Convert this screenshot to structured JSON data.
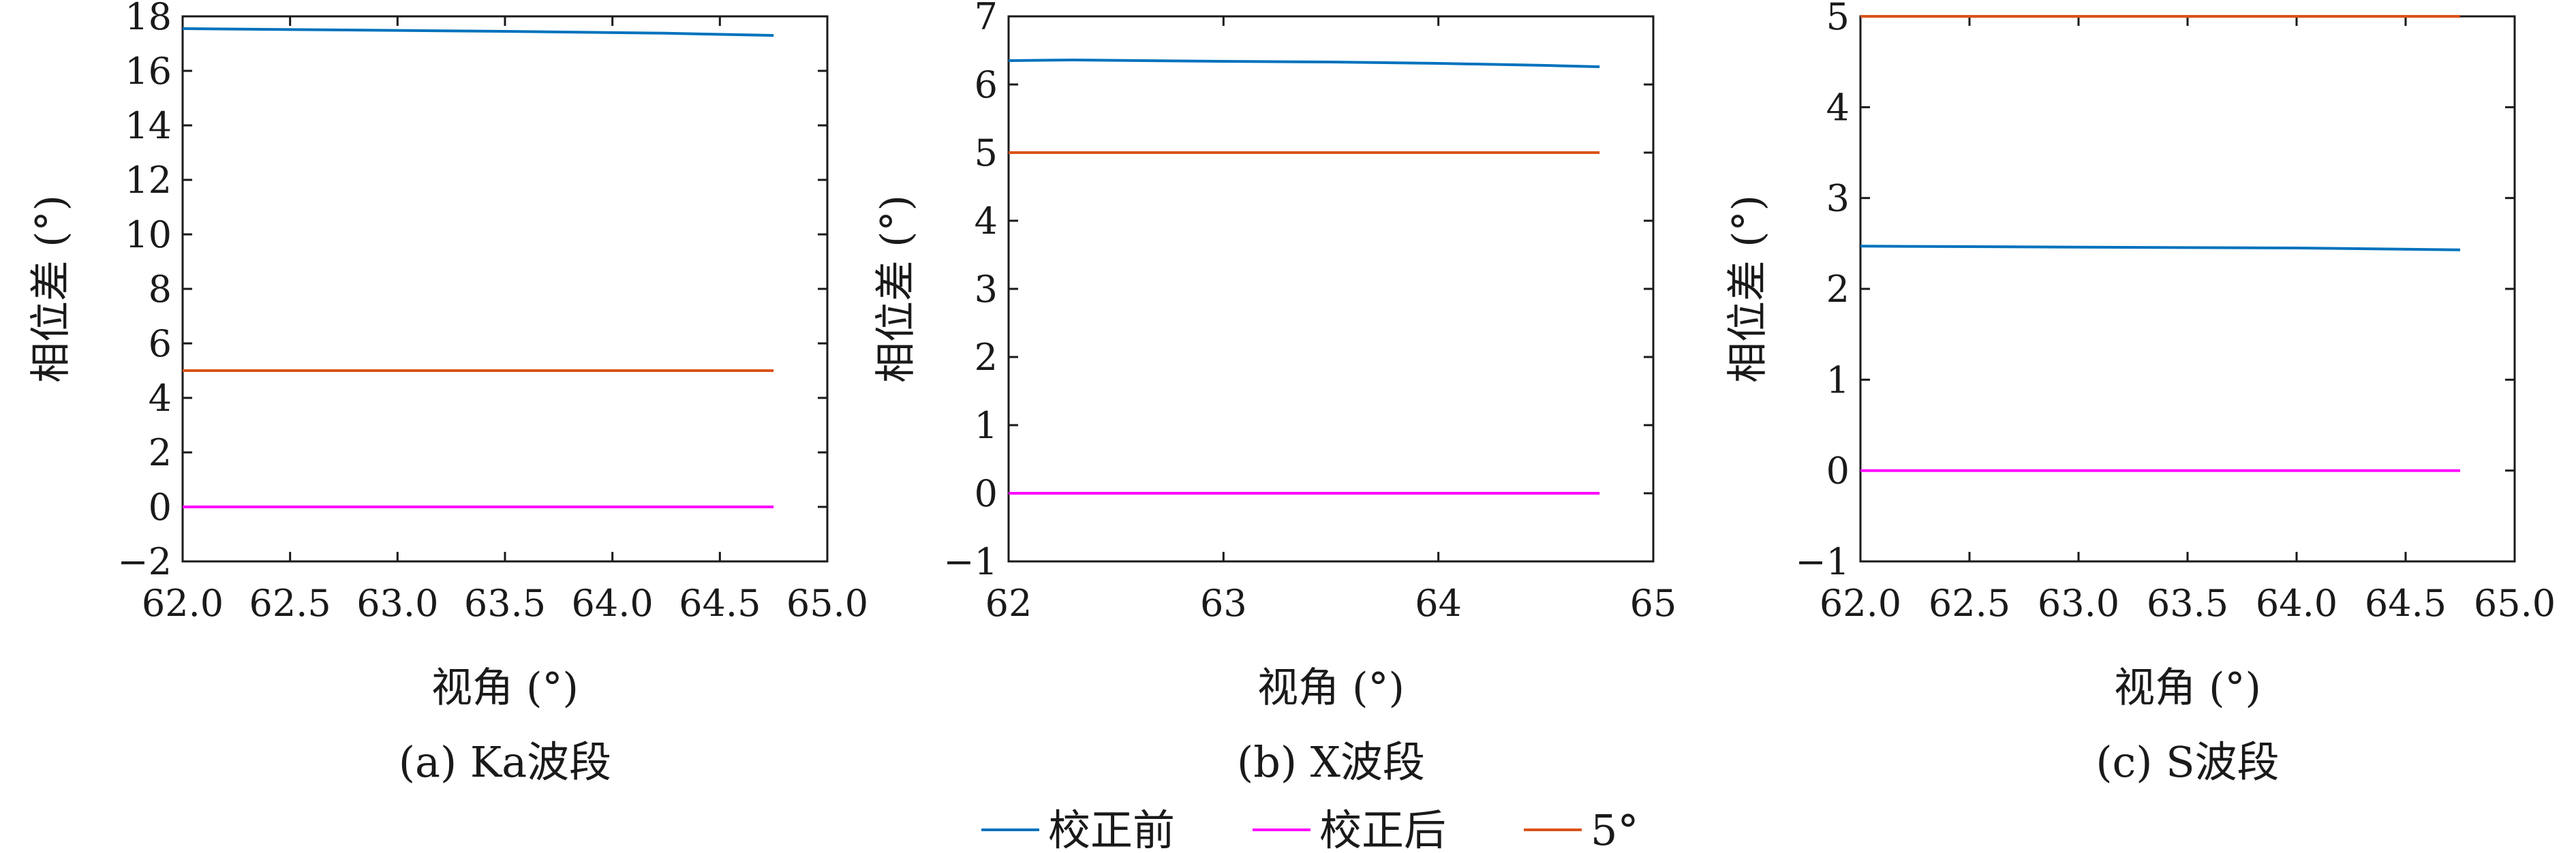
{
  "colors": {
    "before": "#0072BD",
    "after": "#FF00FF",
    "ref": "#D95319",
    "axis": "#1a1a1a"
  },
  "legend": {
    "placement": "bottom-center",
    "entries": [
      "校正前",
      "校正后",
      "5°"
    ]
  },
  "chart_data": [
    {
      "type": "line",
      "caption": "(a) Ka波段",
      "xlabel": "视角 (°)",
      "ylabel": "相位差 (°)",
      "xlim": [
        62.0,
        65.0
      ],
      "ylim": [
        -2,
        18
      ],
      "xticks": [
        62.0,
        62.5,
        63.0,
        63.5,
        64.0,
        64.5,
        65.0
      ],
      "xtick_labels": [
        "62.0",
        "62.5",
        "63.0",
        "63.5",
        "64.0",
        "64.5",
        "65.0"
      ],
      "yticks": [
        -2,
        0,
        2,
        4,
        6,
        8,
        10,
        12,
        14,
        16,
        18
      ],
      "ytick_labels": [
        "−2",
        "0",
        "2",
        "4",
        "6",
        "8",
        "10",
        "12",
        "14",
        "16",
        "18"
      ],
      "grid": false,
      "series": [
        {
          "name": "校正前",
          "x": [
            62.0,
            62.75,
            63.5,
            64.25,
            64.75
          ],
          "y": [
            17.55,
            17.5,
            17.45,
            17.38,
            17.3
          ]
        },
        {
          "name": "校正后",
          "x": [
            62.0,
            64.75
          ],
          "y": [
            0.0,
            0.0
          ]
        },
        {
          "name": "5°",
          "x": [
            62.0,
            64.75
          ],
          "y": [
            5.0,
            5.0
          ]
        }
      ]
    },
    {
      "type": "line",
      "caption": "(b) X波段",
      "xlabel": "视角 (°)",
      "ylabel": "相位差 (°)",
      "xlim": [
        62,
        65
      ],
      "ylim": [
        -1,
        7
      ],
      "xticks": [
        62,
        63,
        64,
        65
      ],
      "xtick_labels": [
        "62",
        "63",
        "64",
        "65"
      ],
      "yticks": [
        -1,
        0,
        1,
        2,
        3,
        4,
        5,
        6,
        7
      ],
      "ytick_labels": [
        "−1",
        "0",
        "1",
        "2",
        "3",
        "4",
        "5",
        "6",
        "7"
      ],
      "grid": false,
      "series": [
        {
          "name": "校正前",
          "x": [
            62.0,
            62.3,
            63.0,
            63.5,
            64.0,
            64.5,
            64.75
          ],
          "y": [
            6.35,
            6.36,
            6.34,
            6.33,
            6.31,
            6.28,
            6.26
          ]
        },
        {
          "name": "校正后",
          "x": [
            62.0,
            64.75
          ],
          "y": [
            0.0,
            0.0
          ]
        },
        {
          "name": "5°",
          "x": [
            62.0,
            64.75
          ],
          "y": [
            5.0,
            5.0
          ]
        }
      ]
    },
    {
      "type": "line",
      "caption": "(c) S波段",
      "xlabel": "视角 (°)",
      "ylabel": "相位差 (°)",
      "xlim": [
        62.0,
        65.0
      ],
      "ylim": [
        -1,
        5
      ],
      "xticks": [
        62.0,
        62.5,
        63.0,
        63.5,
        64.0,
        64.5,
        65.0
      ],
      "xtick_labels": [
        "62.0",
        "62.5",
        "63.0",
        "63.5",
        "64.0",
        "64.5",
        "65.0"
      ],
      "yticks": [
        -1,
        0,
        1,
        2,
        3,
        4,
        5
      ],
      "ytick_labels": [
        "−1",
        "0",
        "1",
        "2",
        "3",
        "4",
        "5"
      ],
      "grid": false,
      "series": [
        {
          "name": "校正前",
          "x": [
            62.0,
            63.0,
            64.0,
            64.75
          ],
          "y": [
            2.47,
            2.46,
            2.45,
            2.43
          ]
        },
        {
          "name": "校正后",
          "x": [
            62.0,
            64.75
          ],
          "y": [
            0.0,
            0.0
          ]
        },
        {
          "name": "5°",
          "x": [
            62.0,
            64.75
          ],
          "y": [
            5.0,
            5.0
          ]
        }
      ]
    }
  ]
}
